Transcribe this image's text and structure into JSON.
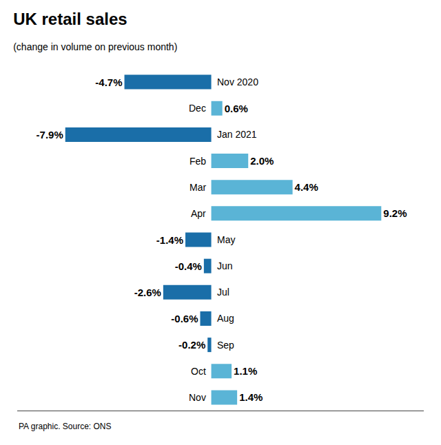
{
  "chart_data": {
    "type": "bar",
    "orientation": "horizontal",
    "title": "UK retail sales",
    "subtitle": "(change in volume on previous month)",
    "annotations": [
      "PA graphic. Source: ONS"
    ],
    "categories": [
      "Nov 2020",
      "Dec",
      "Jan 2021",
      "Feb",
      "Mar",
      "Apr",
      "May",
      "Jun",
      "Jul",
      "Aug",
      "Sep",
      "Oct",
      "Nov"
    ],
    "values": [
      -4.7,
      0.6,
      -7.9,
      2.0,
      4.4,
      9.2,
      -1.4,
      -0.4,
      -2.6,
      -0.6,
      -0.2,
      1.1,
      1.4
    ],
    "value_labels": [
      "-4.7%",
      "0.6%",
      "-7.9%",
      "2.0%",
      "4.4%",
      "9.2%",
      "-1.4%",
      "-0.4%",
      "-2.6%",
      "-0.6%",
      "-0.2%",
      "1.1%",
      "1.4%"
    ],
    "data_labels": true,
    "colors": [
      "#1a6ea8",
      "#5ab4d6",
      "#1a6ea8",
      "#5ab4d6",
      "#5ab4d6",
      "#5ab4d6",
      "#1a6ea8",
      "#1a6ea8",
      "#1a6ea8",
      "#1a6ea8",
      "#1a6ea8",
      "#5ab4d6",
      "#5ab4d6"
    ],
    "xlim": [
      -10.5,
      11.5
    ],
    "tick_labels": false,
    "grid": false
  }
}
